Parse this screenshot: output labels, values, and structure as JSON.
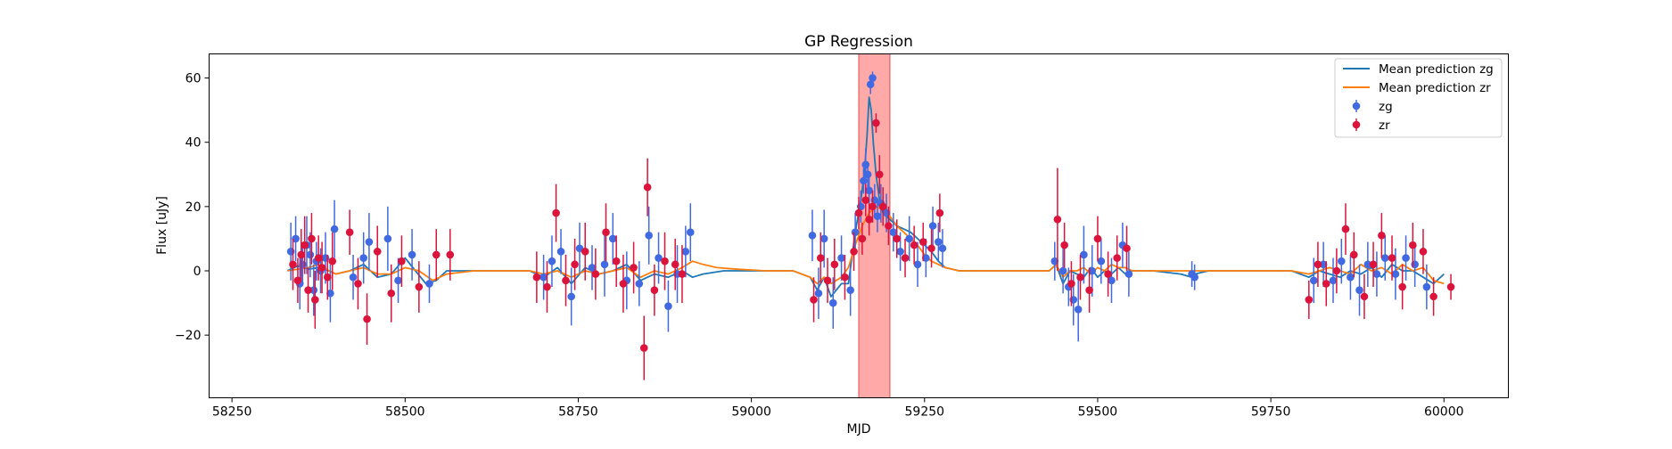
{
  "chart_data": {
    "type": "scatter",
    "title": "GP Regression",
    "xlabel": "MJD",
    "ylabel": "Flux [uJy]",
    "xlim": [
      58217,
      60093
    ],
    "ylim": [
      -39.5,
      67.5
    ],
    "x_ticks": [
      58250,
      58500,
      58750,
      59000,
      59250,
      59500,
      59750,
      60000
    ],
    "y_ticks": [
      -20,
      0,
      20,
      40,
      60
    ],
    "legend_position": "top-right",
    "shaded_region": {
      "x": [
        59155,
        59200
      ],
      "color": "#ff6f6f"
    },
    "colors": {
      "zg": "#4169e1",
      "zr": "#dc143c",
      "pred_zg": "#1f77b4",
      "pred_zr": "#ff7f0e"
    },
    "series": [
      {
        "name": "Mean prediction zg",
        "kind": "line",
        "x": [
          58330,
          58345,
          58360,
          58375,
          58390,
          58400,
          58420,
          58440,
          58460,
          58480,
          58500,
          58515,
          58530,
          58545,
          58560,
          58600,
          58680,
          58700,
          58720,
          58740,
          58760,
          58780,
          58800,
          58820,
          58840,
          58860,
          58880,
          58900,
          58915,
          58930,
          58960,
          59000,
          59060,
          59085,
          59095,
          59105,
          59115,
          59130,
          59140,
          59150,
          59158,
          59163,
          59167,
          59170,
          59173,
          59176,
          59180,
          59185,
          59190,
          59200,
          59210,
          59220,
          59230,
          59240,
          59250,
          59260,
          59270,
          59280,
          59300,
          59340,
          59400,
          59430,
          59440,
          59450,
          59460,
          59470,
          59480,
          59490,
          59500,
          59510,
          59520,
          59530,
          59540,
          59550,
          59580,
          59620,
          59636,
          59640,
          59660,
          59700,
          59780,
          59805,
          59820,
          59835,
          59850,
          59865,
          59880,
          59895,
          59910,
          59925,
          59940,
          59955,
          59970,
          59985,
          60000
        ],
        "y": [
          0,
          1.5,
          0.5,
          1,
          0,
          -1,
          0,
          2,
          -2,
          -1,
          4,
          0,
          -4,
          -3,
          0,
          0,
          0,
          -2,
          1,
          -4,
          1,
          -1,
          0,
          2,
          -3,
          -1,
          -2,
          0,
          -2,
          -1,
          0,
          0,
          0,
          -2,
          -6,
          -2,
          -8,
          -4,
          -4,
          12,
          22,
          30,
          42,
          54,
          50,
          40,
          30,
          22,
          18,
          16,
          14,
          13,
          12,
          10,
          8,
          6,
          3,
          1,
          0,
          0,
          0,
          0,
          2,
          -4,
          0,
          -1,
          -2,
          1,
          -2,
          0,
          -1,
          1,
          -1,
          0,
          0,
          -1,
          -2,
          -1,
          0,
          0,
          0,
          -2,
          0,
          -1,
          -2,
          0,
          -1,
          1,
          -2,
          2,
          0,
          0,
          -2,
          -4,
          -1
        ]
      },
      {
        "name": "Mean prediction zr",
        "kind": "line",
        "x": [
          58330,
          58345,
          58360,
          58375,
          58390,
          58400,
          58420,
          58440,
          58460,
          58480,
          58500,
          58520,
          58540,
          58560,
          58600,
          58680,
          58700,
          58720,
          58740,
          58760,
          58780,
          58800,
          58820,
          58840,
          58860,
          58880,
          58900,
          58915,
          58930,
          58950,
          58980,
          59020,
          59060,
          59085,
          59095,
          59105,
          59115,
          59130,
          59140,
          59150,
          59160,
          59170,
          59180,
          59190,
          59200,
          59210,
          59220,
          59230,
          59240,
          59250,
          59260,
          59270,
          59280,
          59300,
          59340,
          59400,
          59430,
          59440,
          59450,
          59460,
          59470,
          59480,
          59490,
          59500,
          59510,
          59520,
          59530,
          59540,
          59550,
          59580,
          59620,
          59700,
          59780,
          59805,
          59820,
          59835,
          59850,
          59865,
          59880,
          59895,
          59910,
          59925,
          59940,
          59955,
          59970,
          59985,
          60000
        ],
        "y": [
          0,
          0.5,
          1,
          2,
          0,
          -1,
          0,
          1,
          -1,
          -1,
          1,
          0,
          -3,
          -1,
          0,
          0,
          -1,
          0,
          -2,
          0,
          -1,
          0,
          1,
          -2,
          0,
          -1,
          1,
          3,
          2,
          1,
          0.5,
          0,
          0,
          -2,
          -4,
          -2,
          -4,
          -2,
          1,
          8,
          14,
          18,
          20,
          19,
          17,
          14,
          12,
          10,
          8,
          5,
          3,
          2,
          1,
          0,
          0,
          0,
          0,
          2,
          -2,
          0,
          0,
          1,
          -1,
          1,
          0,
          2,
          1,
          1,
          0,
          0,
          0,
          0,
          0,
          -1,
          0,
          1,
          0,
          -1,
          2,
          0,
          1,
          -1,
          2,
          0,
          1,
          -3,
          -4
        ]
      },
      {
        "name": "zg",
        "kind": "errorbar",
        "x": [
          58335,
          58342,
          58348,
          58352,
          58358,
          58363,
          58368,
          58372,
          58378,
          58385,
          58392,
          58398,
          58425,
          58440,
          58448,
          58475,
          58490,
          58510,
          58535,
          58700,
          58712,
          58725,
          58740,
          58752,
          58770,
          58788,
          58800,
          58820,
          58838,
          58852,
          58866,
          58880,
          58893,
          58905,
          58912,
          59088,
          59097,
          59105,
          59118,
          59130,
          59143,
          59150,
          59158,
          59162,
          59165,
          59168,
          59170,
          59172,
          59175,
          59178,
          59182,
          59187,
          59195,
          59205,
          59215,
          59228,
          59240,
          59252,
          59262,
          59270,
          59276,
          59438,
          59450,
          59458,
          59465,
          59472,
          59480,
          59492,
          59505,
          59520,
          59536,
          59545,
          59636,
          59640,
          59812,
          59826,
          59840,
          59852,
          59865,
          59878,
          59890,
          59903,
          59915,
          59930,
          59945,
          59958,
          59975
        ],
        "y": [
          6,
          10,
          -4,
          2,
          8,
          5,
          -6,
          3,
          0,
          4,
          -7,
          13,
          -2,
          4,
          9,
          10,
          -3,
          5,
          -4,
          -2,
          3,
          6,
          -8,
          7,
          1,
          2,
          10,
          -3,
          -4,
          11,
          4,
          -11,
          -1,
          6,
          12,
          11,
          -7,
          10,
          -10,
          4,
          -6,
          12,
          20,
          28,
          33,
          30,
          25,
          58,
          60,
          22,
          17,
          21,
          18,
          12,
          6,
          10,
          2,
          4,
          14,
          9,
          7,
          3,
          0,
          -5,
          -9,
          -12,
          5,
          0,
          3,
          -3,
          8,
          -1,
          -1,
          -2,
          -3,
          2,
          -3,
          3,
          -2,
          -6,
          2,
          -1,
          4,
          -1,
          4,
          2,
          -5
        ],
        "err": [
          9,
          7,
          8,
          6,
          9,
          7,
          8,
          6,
          7,
          8,
          9,
          9,
          7,
          8,
          9,
          10,
          7,
          8,
          6,
          7,
          8,
          7,
          9,
          8,
          7,
          10,
          8,
          9,
          7,
          9,
          8,
          8,
          9,
          8,
          9,
          8,
          8,
          9,
          8,
          7,
          8,
          6,
          5,
          4,
          5,
          4,
          4,
          3,
          2,
          5,
          5,
          6,
          6,
          6,
          6,
          7,
          7,
          6,
          6,
          6,
          6,
          6,
          7,
          6,
          8,
          10,
          9,
          8,
          7,
          7,
          7,
          7,
          4,
          4,
          7,
          7,
          7,
          7,
          7,
          8,
          7,
          7,
          7,
          8,
          7,
          7,
          7
        ]
      },
      {
        "name": "zr",
        "kind": "errorbar",
        "x": [
          58338,
          58345,
          58350,
          58355,
          58360,
          58365,
          58370,
          58375,
          58380,
          58388,
          58395,
          58420,
          58432,
          58445,
          58460,
          58480,
          58495,
          58520,
          58545,
          58565,
          58690,
          58705,
          58718,
          58732,
          58745,
          58760,
          58775,
          58790,
          58805,
          58815,
          58830,
          58845,
          58850,
          58860,
          58875,
          58890,
          58900,
          59090,
          59100,
          59110,
          59120,
          59135,
          59148,
          59155,
          59160,
          59165,
          59170,
          59175,
          59180,
          59185,
          59190,
          59198,
          59210,
          59222,
          59235,
          59248,
          59260,
          59272,
          59442,
          59452,
          59462,
          59475,
          59488,
          59500,
          59515,
          59528,
          59542,
          59805,
          59818,
          59830,
          59845,
          59858,
          59870,
          59885,
          59898,
          59910,
          59925,
          59940,
          59955,
          59970,
          59985,
          60010
        ],
        "y": [
          2,
          -3,
          5,
          8,
          -6,
          10,
          -9,
          4,
          1,
          -2,
          3,
          12,
          -4,
          -15,
          6,
          -7,
          3,
          -5,
          5,
          5,
          -2,
          -5,
          18,
          -3,
          2,
          6,
          -1,
          12,
          3,
          -4,
          1,
          -24,
          26,
          -6,
          3,
          2,
          -1,
          -9,
          4,
          -3,
          2,
          -2,
          6,
          18,
          10,
          22,
          16,
          20,
          46,
          30,
          20,
          14,
          10,
          4,
          8,
          9,
          7,
          18,
          16,
          8,
          -4,
          -2,
          -6,
          10,
          -1,
          4,
          7,
          -9,
          2,
          -4,
          0,
          13,
          5,
          -8,
          2,
          11,
          4,
          -5,
          8,
          6,
          -8,
          -5
        ],
        "err": [
          8,
          7,
          8,
          9,
          7,
          8,
          9,
          7,
          8,
          7,
          9,
          7,
          8,
          8,
          8,
          9,
          8,
          8,
          8,
          8,
          8,
          8,
          9,
          8,
          8,
          9,
          8,
          9,
          8,
          9,
          8,
          10,
          9,
          8,
          9,
          8,
          9,
          7,
          8,
          7,
          8,
          7,
          6,
          5,
          5,
          5,
          5,
          5,
          3,
          6,
          6,
          6,
          6,
          6,
          6,
          6,
          6,
          6,
          16,
          7,
          7,
          7,
          7,
          7,
          7,
          7,
          7,
          6,
          7,
          7,
          7,
          8,
          7,
          7,
          7,
          7,
          7,
          7,
          7,
          7,
          6,
          4
        ]
      }
    ]
  }
}
